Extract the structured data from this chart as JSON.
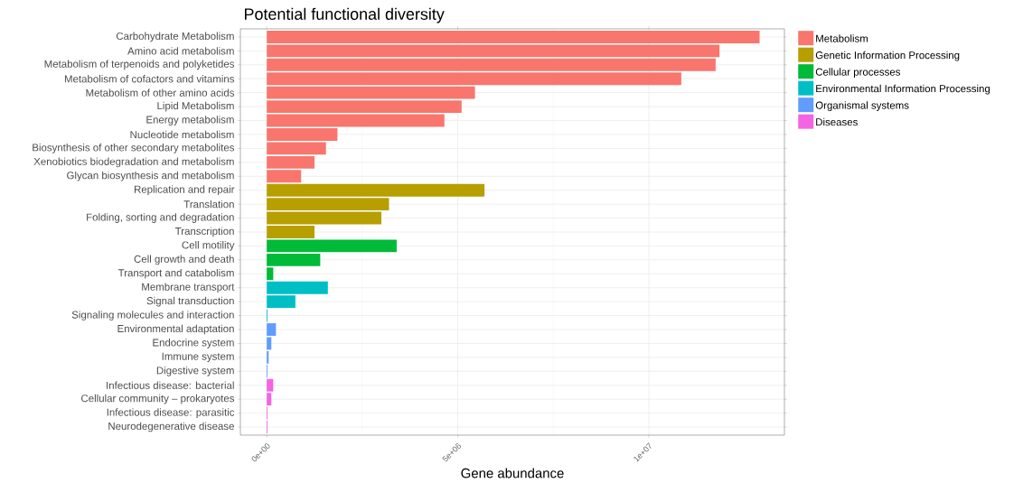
{
  "chart_data": {
    "type": "bar",
    "orientation": "horizontal",
    "title": "Potential functional diversity",
    "xlabel": "Gene abundance",
    "categories": [
      "Carbohydrate Metabolism",
      "Amino acid metabolism",
      "Metabolism of terpenoids and polyketides",
      "Metabolism of cofactors and vitamins",
      "Metabolism of other amino acids",
      "Lipid Metabolism",
      "Energy metabolism",
      "Nucleotide metabolism",
      "Biosynthesis of other secondary metabolites",
      "Xenobiotics biodegradation and metabolism",
      "Glycan biosynthesis and metabolism",
      "Replication and repair",
      "Translation",
      "Folding, sorting and degradation",
      "Transcription",
      "Cell motility",
      "Cell growth and death",
      "Transport and catabolism",
      "Membrane transport",
      "Signal transduction",
      "Signaling molecules and interaction",
      "Environmental adaptation",
      "Endocrine system",
      "Immune system",
      "Digestive system",
      "Infectious disease: bacterial",
      "Cellular community – prokaryotes",
      "Infectious disease: parasitic",
      "Neurodegenerative disease"
    ],
    "series": [
      {
        "name": "Metabolism",
        "color": "#f8766d",
        "values": [
          12900000,
          11850000,
          11750000,
          10850000,
          5450000,
          5100000,
          4650000,
          1850000,
          1550000,
          1250000,
          900000,
          null,
          null,
          null,
          null,
          null,
          null,
          null,
          null,
          null,
          null,
          null,
          null,
          null,
          null,
          null,
          null,
          null,
          null
        ]
      },
      {
        "name": "Genetic Information Processing",
        "color": "#b79f00",
        "values": [
          null,
          null,
          null,
          null,
          null,
          null,
          null,
          null,
          null,
          null,
          null,
          5700000,
          3200000,
          3000000,
          1250000,
          null,
          null,
          null,
          null,
          null,
          null,
          null,
          null,
          null,
          null,
          null,
          null,
          null,
          null
        ]
      },
      {
        "name": "Cellular processes",
        "color": "#00ba38",
        "values": [
          null,
          null,
          null,
          null,
          null,
          null,
          null,
          null,
          null,
          null,
          null,
          null,
          null,
          null,
          null,
          3400000,
          1400000,
          170000,
          null,
          null,
          null,
          null,
          null,
          null,
          null,
          null,
          null,
          null,
          null
        ]
      },
      {
        "name": "Environmental Information Processing",
        "color": "#00bfc4",
        "values": [
          null,
          null,
          null,
          null,
          null,
          null,
          null,
          null,
          null,
          null,
          null,
          null,
          null,
          null,
          null,
          null,
          null,
          null,
          1600000,
          750000,
          20000,
          null,
          null,
          null,
          null,
          null,
          null,
          null,
          null
        ]
      },
      {
        "name": "Organismal systems",
        "color": "#619cff",
        "values": [
          null,
          null,
          null,
          null,
          null,
          null,
          null,
          null,
          null,
          null,
          null,
          null,
          null,
          null,
          null,
          null,
          null,
          null,
          null,
          null,
          null,
          240000,
          120000,
          50000,
          20000,
          null,
          null,
          null,
          null
        ]
      },
      {
        "name": "Diseases",
        "color": "#f564e3",
        "values": [
          null,
          null,
          null,
          null,
          null,
          null,
          null,
          null,
          null,
          null,
          null,
          null,
          null,
          null,
          null,
          null,
          null,
          null,
          null,
          null,
          null,
          null,
          null,
          null,
          null,
          170000,
          120000,
          20000,
          20000
        ]
      }
    ],
    "xlim": [
      -690000,
      13550000
    ],
    "xticks": [
      {
        "value": 0,
        "label": "0e+00"
      },
      {
        "value": 5000000,
        "label": "5e+06"
      },
      {
        "value": 10000000,
        "label": "1e+07"
      }
    ],
    "grid": true,
    "legend": "right"
  }
}
